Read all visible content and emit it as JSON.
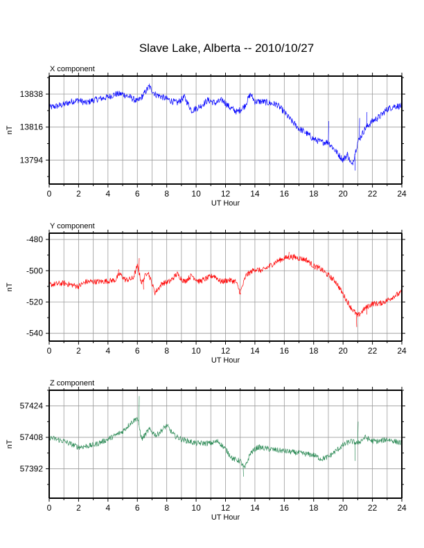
{
  "chart_data": {
    "title": "Slave Lake, Alberta -- 2010/10/27",
    "panels": [
      {
        "type": "line",
        "title": "X component",
        "ylabel": "nT",
        "xlabel": "UT Hour",
        "color": "#0000ff",
        "xlim": [
          0,
          24
        ],
        "ylim": [
          13778,
          13850
        ],
        "xticks": [
          0,
          2,
          4,
          6,
          8,
          10,
          12,
          14,
          16,
          18,
          20,
          22,
          24
        ],
        "yticks": [
          13794,
          13816,
          13838
        ],
        "grid": true,
        "noise": 2.2,
        "points": [
          [
            0,
            13829
          ],
          [
            0.5,
            13830
          ],
          [
            1,
            13831
          ],
          [
            1.5,
            13833
          ],
          [
            2,
            13834
          ],
          [
            2.5,
            13832
          ],
          [
            3,
            13834
          ],
          [
            3.5,
            13835
          ],
          [
            4,
            13836
          ],
          [
            4.5,
            13838
          ],
          [
            5,
            13838
          ],
          [
            5.5,
            13836
          ],
          [
            6,
            13833
          ],
          [
            6.3,
            13836
          ],
          [
            6.8,
            13843
          ],
          [
            7.2,
            13838
          ],
          [
            7.7,
            13836
          ],
          [
            8.2,
            13834
          ],
          [
            8.7,
            13832
          ],
          [
            9.2,
            13836
          ],
          [
            9.7,
            13827
          ],
          [
            10.3,
            13830
          ],
          [
            10.8,
            13834
          ],
          [
            11.3,
            13832
          ],
          [
            11.8,
            13834
          ],
          [
            12.3,
            13829
          ],
          [
            12.8,
            13826
          ],
          [
            13.3,
            13830
          ],
          [
            13.7,
            13838
          ],
          [
            14,
            13833
          ],
          [
            14.5,
            13833
          ],
          [
            15,
            13832
          ],
          [
            15.5,
            13831
          ],
          [
            16,
            13826
          ],
          [
            16.5,
            13820
          ],
          [
            17,
            13815
          ],
          [
            17.5,
            13812
          ],
          [
            18,
            13808
          ],
          [
            18.5,
            13806
          ],
          [
            19,
            13806
          ],
          [
            19.5,
            13800
          ],
          [
            20,
            13794
          ],
          [
            20.3,
            13798
          ],
          [
            20.6,
            13790
          ],
          [
            21,
            13806
          ],
          [
            21.5,
            13815
          ],
          [
            22,
            13820
          ],
          [
            22.5,
            13823
          ],
          [
            23,
            13828
          ],
          [
            23.5,
            13830
          ],
          [
            24,
            13830
          ]
        ],
        "spikes": [
          [
            6.8,
            13845
          ],
          [
            19.0,
            13820
          ],
          [
            20.3,
            13796
          ],
          [
            20.8,
            13787
          ],
          [
            21.1,
            13822
          ],
          [
            21.6,
            13826
          ]
        ]
      },
      {
        "type": "line",
        "title": "Y component",
        "ylabel": "nT",
        "xlabel": "UT Hour",
        "color": "#ff0000",
        "xlim": [
          0,
          24
        ],
        "ylim": [
          -545,
          -476
        ],
        "xticks": [
          0,
          2,
          4,
          6,
          8,
          10,
          12,
          14,
          16,
          18,
          20,
          22,
          24
        ],
        "yticks": [
          -540,
          -520,
          -500,
          -480
        ],
        "grid": true,
        "noise": 1.8,
        "points": [
          [
            0,
            -509
          ],
          [
            1,
            -508
          ],
          [
            2,
            -510
          ],
          [
            2.5,
            -507
          ],
          [
            3.5,
            -507
          ],
          [
            4.5,
            -506
          ],
          [
            4.8,
            -502
          ],
          [
            5.2,
            -506
          ],
          [
            5.7,
            -505
          ],
          [
            6,
            -497
          ],
          [
            6.3,
            -508
          ],
          [
            6.7,
            -500
          ],
          [
            7.2,
            -514
          ],
          [
            7.7,
            -508
          ],
          [
            8.2,
            -507
          ],
          [
            8.7,
            -502
          ],
          [
            9.2,
            -507
          ],
          [
            9.7,
            -503
          ],
          [
            10.2,
            -507
          ],
          [
            10.7,
            -505
          ],
          [
            11.2,
            -503
          ],
          [
            11.7,
            -507
          ],
          [
            12.2,
            -506
          ],
          [
            12.7,
            -507
          ],
          [
            13,
            -514
          ],
          [
            13.4,
            -503
          ],
          [
            14,
            -499
          ],
          [
            14.5,
            -500
          ],
          [
            15,
            -497
          ],
          [
            15.5,
            -494
          ],
          [
            16,
            -492
          ],
          [
            16.5,
            -491
          ],
          [
            17,
            -492
          ],
          [
            17.5,
            -493
          ],
          [
            18,
            -497
          ],
          [
            18.5,
            -499
          ],
          [
            19,
            -503
          ],
          [
            19.5,
            -507
          ],
          [
            20,
            -515
          ],
          [
            20.5,
            -523
          ],
          [
            21,
            -529
          ],
          [
            21.5,
            -524
          ],
          [
            22,
            -521
          ],
          [
            22.5,
            -521
          ],
          [
            23,
            -519
          ],
          [
            23.5,
            -516
          ],
          [
            24,
            -514
          ]
        ],
        "spikes": [
          [
            4.7,
            -499
          ],
          [
            6.1,
            -492
          ],
          [
            6.4,
            -512
          ],
          [
            13.0,
            -515
          ],
          [
            16.3,
            -488
          ],
          [
            20.9,
            -536
          ],
          [
            21.6,
            -528
          ]
        ]
      },
      {
        "type": "line",
        "title": "Z component",
        "ylabel": "nT",
        "xlabel": "UT Hour",
        "color": "#2e8b57",
        "xlim": [
          0,
          24
        ],
        "ylim": [
          57377,
          57432
        ],
        "xticks": [
          0,
          2,
          4,
          6,
          8,
          10,
          12,
          14,
          16,
          18,
          20,
          22,
          24
        ],
        "yticks": [
          57392,
          57408,
          57424
        ],
        "grid": true,
        "noise": 1.4,
        "points": [
          [
            0,
            57408
          ],
          [
            1,
            57406
          ],
          [
            2,
            57403
          ],
          [
            3,
            57404
          ],
          [
            4,
            57407
          ],
          [
            5,
            57411
          ],
          [
            5.5,
            57415
          ],
          [
            6,
            57418
          ],
          [
            6.3,
            57407
          ],
          [
            6.8,
            57412
          ],
          [
            7.3,
            57409
          ],
          [
            8,
            57414
          ],
          [
            8.5,
            57409
          ],
          [
            9,
            57407
          ],
          [
            10,
            57405
          ],
          [
            10.5,
            57405
          ],
          [
            11,
            57405
          ],
          [
            11.5,
            57406
          ],
          [
            12,
            57402
          ],
          [
            12.5,
            57397
          ],
          [
            13,
            57396
          ],
          [
            13.3,
            57392
          ],
          [
            13.7,
            57400
          ],
          [
            14.2,
            57403
          ],
          [
            15,
            57402
          ],
          [
            16,
            57401
          ],
          [
            17,
            57400
          ],
          [
            18,
            57399
          ],
          [
            18.5,
            57397
          ],
          [
            19,
            57398
          ],
          [
            19.5,
            57401
          ],
          [
            20,
            57404
          ],
          [
            20.5,
            57406
          ],
          [
            21,
            57405
          ],
          [
            21.5,
            57408
          ],
          [
            22,
            57406
          ],
          [
            22.5,
            57406
          ],
          [
            23,
            57407
          ],
          [
            24,
            57405
          ]
        ],
        "spikes": [
          [
            6.1,
            57429
          ],
          [
            13.2,
            57388
          ],
          [
            20.8,
            57396
          ],
          [
            21.0,
            57416
          ]
        ]
      }
    ]
  }
}
